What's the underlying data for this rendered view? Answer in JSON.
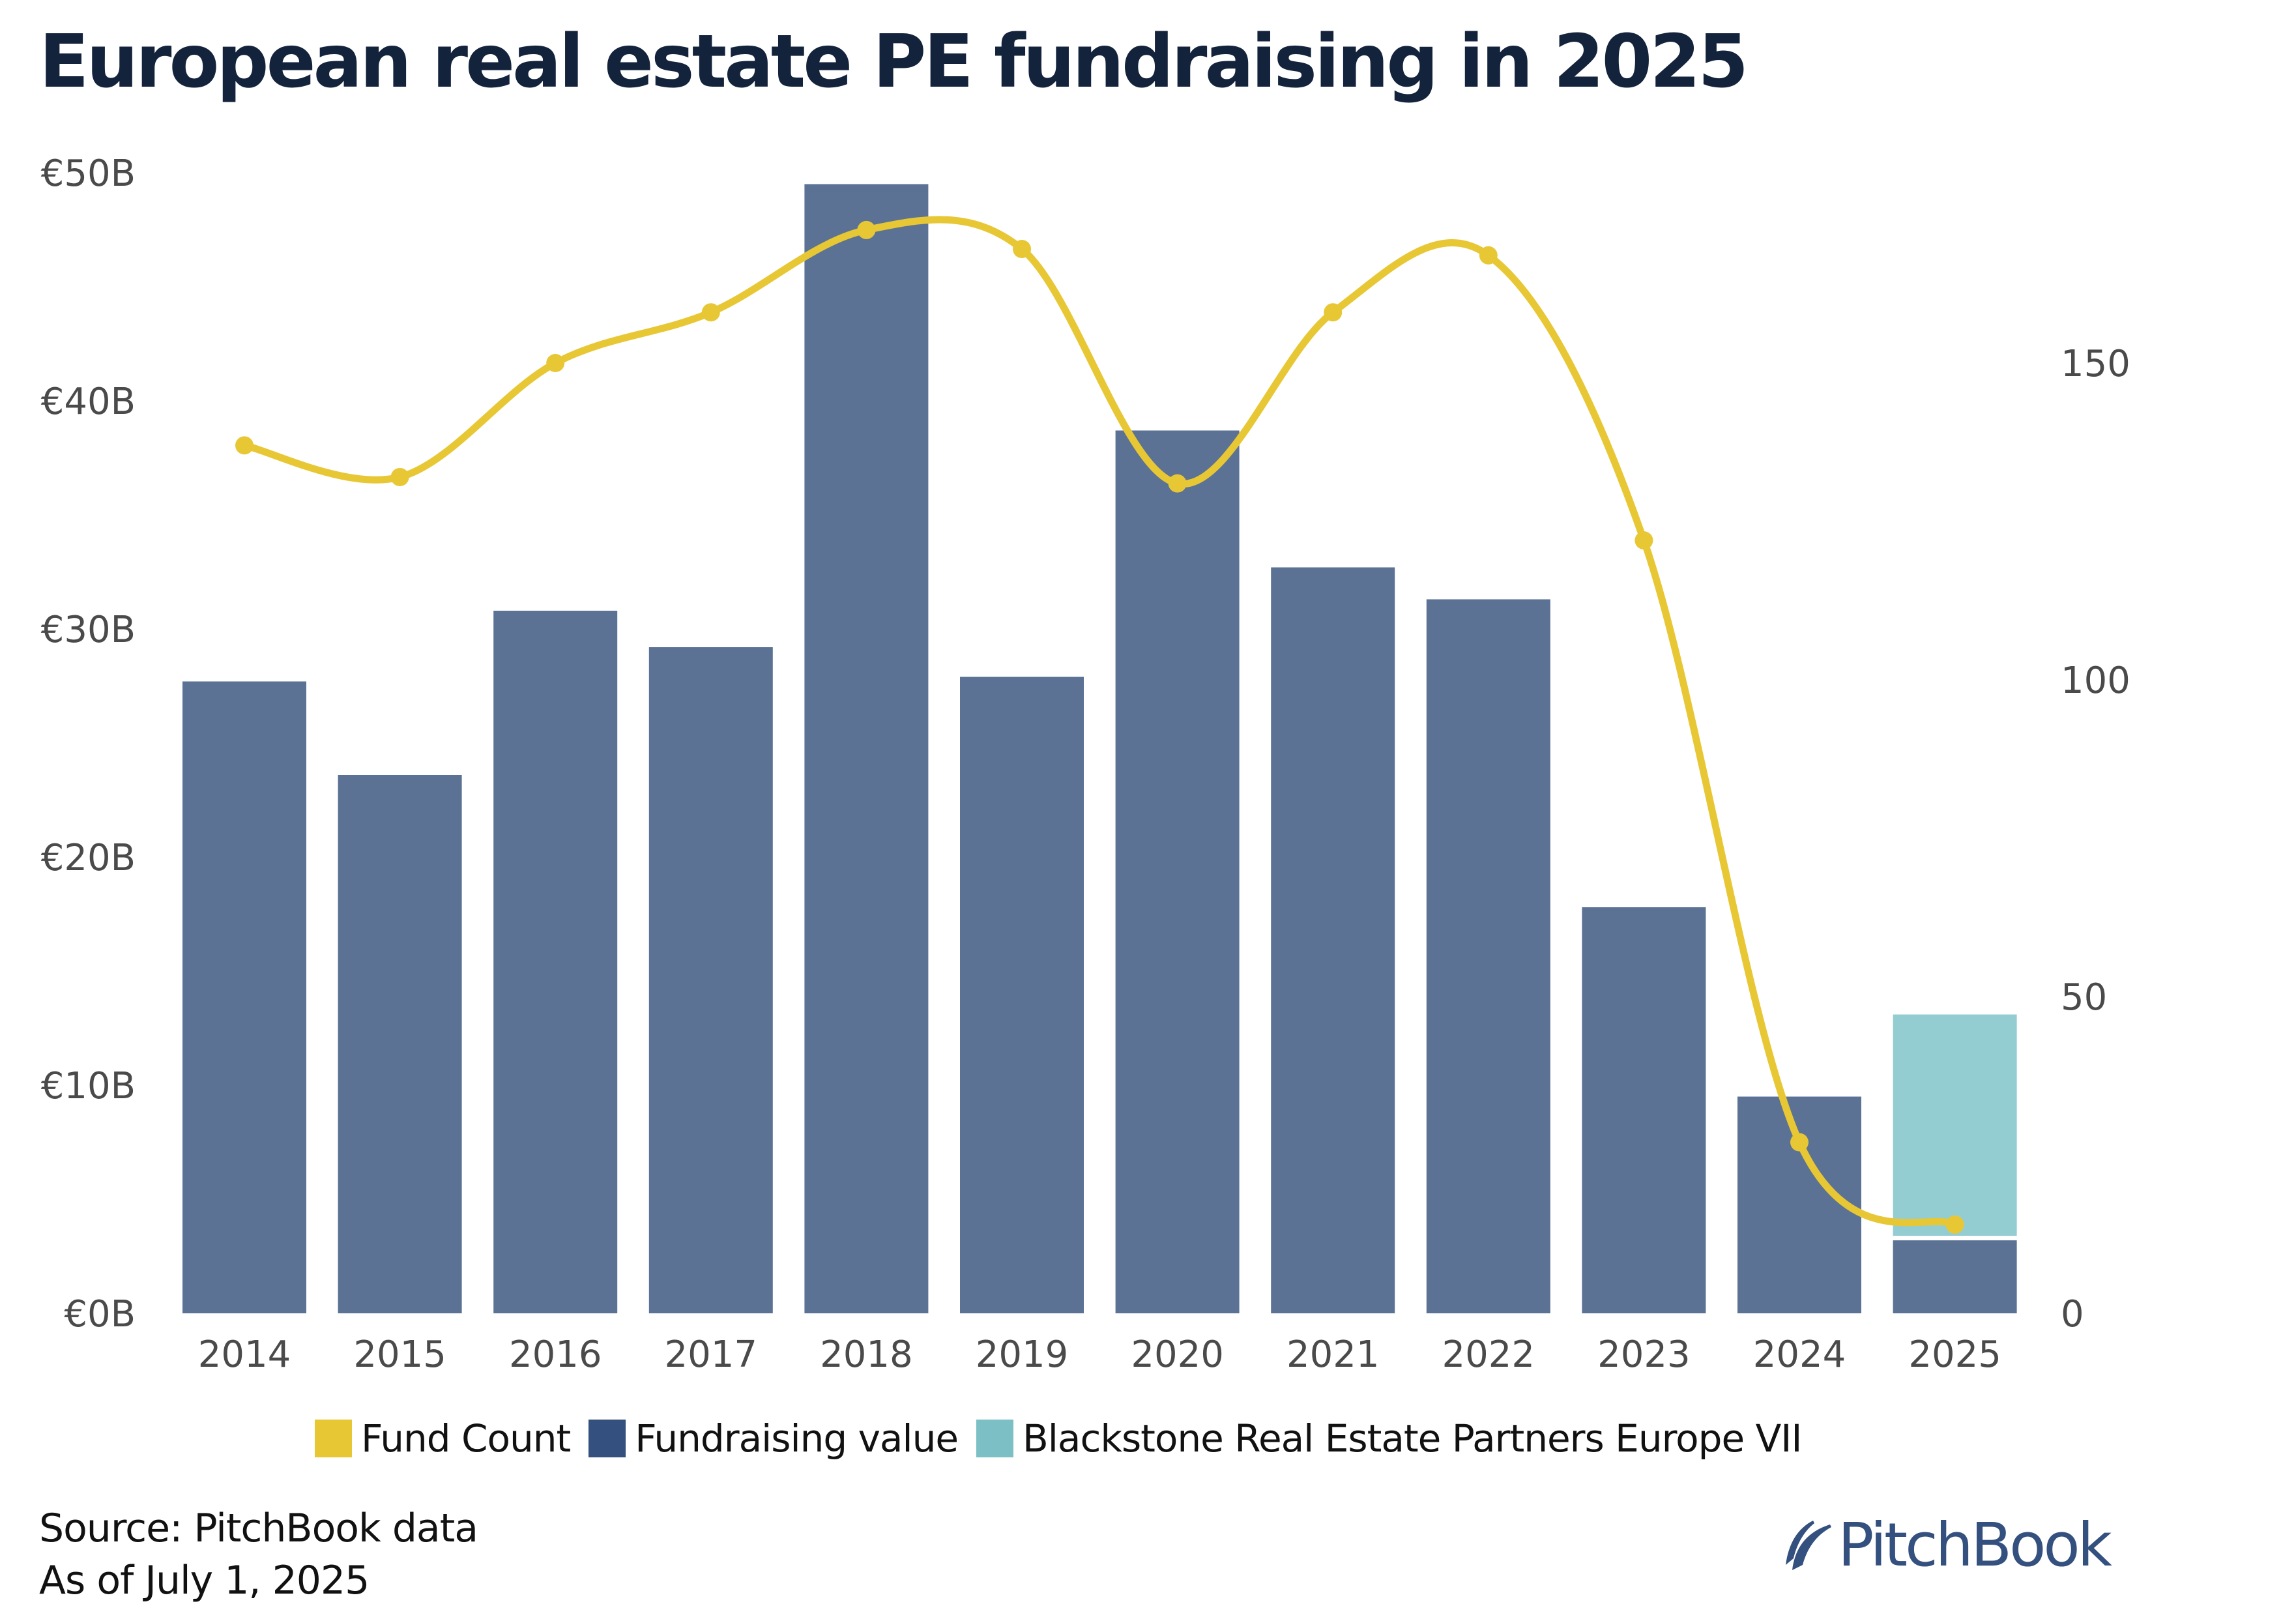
{
  "title": "European real estate PE fundraising in 2025",
  "chart_data": {
    "type": "bar",
    "title": "European real estate PE fundraising in 2025",
    "categories": [
      "2014",
      "2015",
      "2016",
      "2017",
      "2018",
      "2019",
      "2020",
      "2021",
      "2022",
      "2023",
      "2024",
      "2025"
    ],
    "series": [
      {
        "name": "Fundraising value",
        "type": "bar",
        "axis": "left",
        "stack": "value",
        "unit": "€B",
        "color": "#5B7295",
        "legend_color": "#34507E",
        "values": [
          27.7,
          23.6,
          30.8,
          29.2,
          49.5,
          27.9,
          38.7,
          32.7,
          31.3,
          17.8,
          9.5,
          3.2
        ]
      },
      {
        "name": "Blackstone Real Estate Partners Europe VII",
        "type": "bar",
        "axis": "left",
        "stack": "value",
        "unit": "€B",
        "color": "#94CDD1",
        "legend_color": "#7CC0C6",
        "values": [
          null,
          null,
          null,
          null,
          null,
          null,
          null,
          null,
          null,
          null,
          null,
          9.9
        ]
      },
      {
        "name": "Fund Count",
        "type": "line",
        "axis": "right",
        "smooth": true,
        "color": "#E8C735",
        "legend_color": "#E8C735",
        "values": [
          137,
          132,
          150,
          158,
          171,
          168,
          131,
          158,
          167,
          122,
          27,
          14
        ]
      }
    ],
    "left_axis": {
      "label": "",
      "ylim": [
        0,
        50
      ],
      "ticks": [
        0,
        10,
        20,
        30,
        40,
        50
      ],
      "tick_labels": [
        "€0B",
        "€10B",
        "€20B",
        "€30B",
        "€40B",
        "€50B"
      ]
    },
    "right_axis": {
      "label": "",
      "ylim": [
        0,
        150
      ],
      "ticks": [
        0,
        50,
        100,
        150
      ],
      "tick_labels": [
        "0",
        "50",
        "100",
        "150"
      ]
    },
    "xlabel": "",
    "grid": false,
    "legend": {
      "placement": "bottom",
      "order": [
        "Fund Count",
        "Fundraising value",
        "Blackstone Real Estate Partners Europe VII"
      ]
    }
  },
  "legend": [
    {
      "label": "Fund Count",
      "color": "#E8C735"
    },
    {
      "label": "Fundraising value",
      "color": "#34507E"
    },
    {
      "label": "Blackstone Real Estate Partners Europe VII",
      "color": "#7CC0C6"
    }
  ],
  "footer": {
    "source": "Source: PitchBook data",
    "as_of": "As of July 1, 2025"
  },
  "logo": {
    "text": "PitchBook",
    "color": "#34507E"
  }
}
